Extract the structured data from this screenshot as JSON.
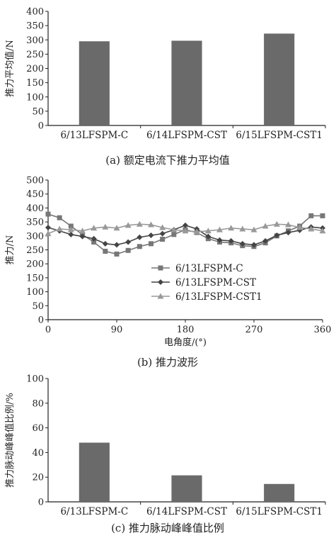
{
  "chart_data": [
    {
      "type": "bar",
      "ylabel": "推力平均值/N",
      "ylim": [
        0,
        400
      ],
      "yticks": [
        "0",
        "50",
        "100",
        "150",
        "200",
        "250",
        "300",
        "350",
        "400"
      ],
      "categories": [
        "6/13LFSPM-C",
        "6/14LFSPM-CST",
        "6/15LFSPM-CST1"
      ],
      "values": [
        295,
        297,
        322
      ],
      "caption": "(a) 额定电流下推力平均值",
      "color": "#6a6a6a"
    },
    {
      "type": "line",
      "ylabel": "推力/N",
      "xlabel": "电角度/(°)",
      "ylim": [
        0,
        500
      ],
      "xlim": [
        0,
        360
      ],
      "yticks": [
        "0",
        "50",
        "100",
        "150",
        "200",
        "250",
        "300",
        "350",
        "400",
        "450",
        "500"
      ],
      "xticks": [
        "0",
        "90",
        "180",
        "270",
        "360"
      ],
      "legend_position": "center",
      "caption": "(b) 推力波形",
      "x": [
        0,
        15,
        30,
        45,
        60,
        75,
        90,
        105,
        120,
        135,
        150,
        165,
        180,
        195,
        210,
        225,
        240,
        255,
        270,
        285,
        300,
        315,
        330,
        345,
        360
      ],
      "series": [
        {
          "name": "6/13LFSPM-C",
          "marker": "square",
          "color": "#777777",
          "values": [
            378,
            365,
            335,
            305,
            278,
            245,
            235,
            248,
            262,
            272,
            288,
            305,
            322,
            312,
            290,
            278,
            275,
            265,
            262,
            275,
            300,
            318,
            335,
            372,
            372
          ]
        },
        {
          "name": "6/13LFSPM-CST",
          "marker": "diamond",
          "color": "#444444",
          "values": [
            330,
            318,
            305,
            298,
            290,
            272,
            268,
            278,
            295,
            302,
            308,
            322,
            338,
            325,
            298,
            285,
            282,
            272,
            268,
            282,
            302,
            312,
            320,
            332,
            328
          ]
        },
        {
          "name": "6/13LFSPM-CST1",
          "marker": "triangle",
          "color": "#999999",
          "values": [
            308,
            325,
            322,
            318,
            328,
            332,
            328,
            338,
            342,
            340,
            330,
            322,
            318,
            315,
            318,
            322,
            328,
            325,
            322,
            335,
            342,
            340,
            330,
            325,
            318
          ]
        }
      ]
    },
    {
      "type": "bar",
      "ylabel": "推力脉动峰峰值比例/%",
      "ylim": [
        0,
        100
      ],
      "yticks": [
        "0",
        "20",
        "40",
        "60",
        "80",
        "100"
      ],
      "categories": [
        "6/13LFSPM-C",
        "6/14LFSPM-CST",
        "6/15LFSPM-CST1"
      ],
      "values": [
        48,
        21.5,
        14.5
      ],
      "caption": "(c) 推力脉动峰峰值比例",
      "color": "#6a6a6a"
    }
  ]
}
